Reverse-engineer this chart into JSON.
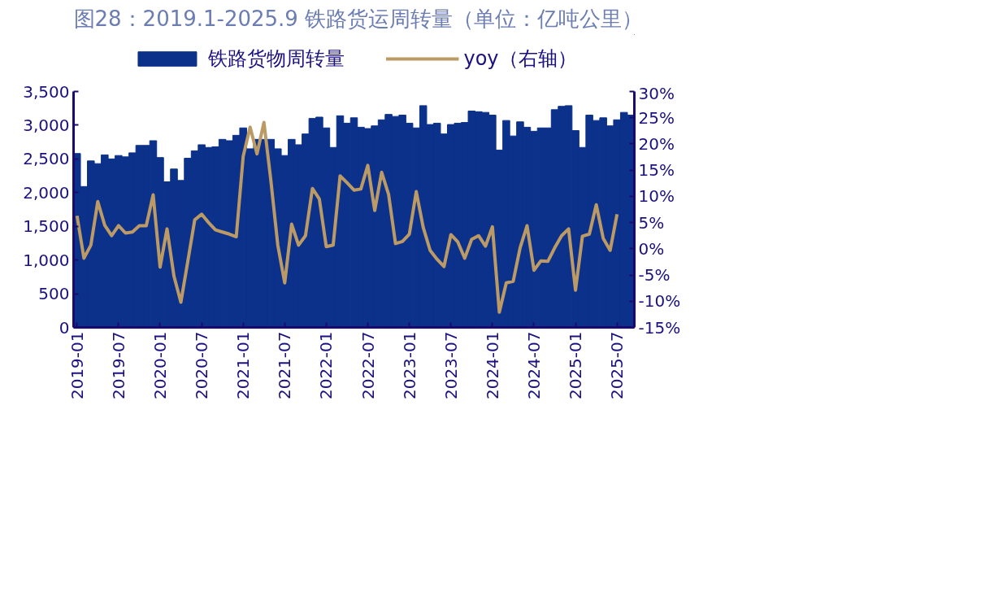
{
  "chart_data": {
    "type": "bar",
    "title": "图28：2019.1-2025.9 铁路货运周转量（单位：亿吨公里）",
    "categories": [
      "2019-01",
      null,
      null,
      null,
      null,
      null,
      "2019-07",
      null,
      null,
      null,
      null,
      null,
      "2020-01",
      null,
      null,
      null,
      null,
      null,
      "2020-07",
      null,
      null,
      null,
      null,
      null,
      "2021-01",
      null,
      null,
      null,
      null,
      null,
      "2021-07",
      null,
      null,
      null,
      null,
      null,
      "2022-01",
      null,
      null,
      null,
      null,
      null,
      "2022-07",
      null,
      null,
      null,
      null,
      null,
      "2023-01",
      null,
      null,
      null,
      null,
      null,
      "2023-07",
      null,
      null,
      null,
      null,
      null,
      "2024-01",
      null,
      null,
      null,
      null,
      null,
      "2024-07",
      null,
      null,
      null,
      null,
      null,
      "2025-01",
      null,
      null,
      null,
      null,
      null,
      "2025-07",
      null,
      null
    ],
    "series": [
      {
        "name": "铁路货物周转量",
        "color": "#0c318a",
        "values": [
          2580,
          2090,
          2470,
          2430,
          2560,
          2500,
          2550,
          2530,
          2590,
          2700,
          2700,
          2770,
          2520,
          2160,
          2350,
          2180,
          2510,
          2620,
          2710,
          2670,
          2680,
          2790,
          2770,
          2850,
          2960,
          2650,
          2790,
          2790,
          2790,
          2650,
          2550,
          2790,
          2710,
          2870,
          3100,
          3120,
          2960,
          2670,
          3140,
          3030,
          3110,
          2970,
          2950,
          2990,
          3080,
          3160,
          3130,
          3150,
          3030,
          2960,
          3290,
          3010,
          3030,
          2870,
          3010,
          3030,
          3040,
          3210,
          3200,
          3190,
          3150,
          2630,
          3070,
          2840,
          3050,
          2970,
          2910,
          2960,
          2960,
          3230,
          3280,
          3290,
          2920,
          2670,
          3150,
          3070,
          3110,
          2990,
          3080,
          3190,
          3150
        ]
      },
      {
        "name": "yoy（右轴）",
        "type": "line",
        "axis": "y2",
        "color": "#bc9a66",
        "values": [
          6.3,
          -1.8,
          0.7,
          9.0,
          4.5,
          2.5,
          4.4,
          3.0,
          3.2,
          4.4,
          4.4,
          10.3,
          -3.5,
          3.8,
          -5.2,
          -10.2,
          -2.4,
          5.5,
          6.6,
          5.0,
          3.6,
          3.2,
          2.8,
          2.3,
          17.6,
          23.2,
          18.1,
          24.1,
          13.0,
          0.7,
          -6.5,
          4.7,
          0.7,
          2.5,
          11.5,
          9.5,
          0.4,
          0.7,
          13.9,
          12.6,
          11.2,
          11.4,
          15.9,
          7.3,
          14.6,
          10.4,
          1.0,
          1.4,
          2.8,
          10.9,
          4.1,
          -0.3,
          -2.0,
          -3.4,
          2.7,
          1.3,
          -1.8,
          1.8,
          2.5,
          0.5,
          4.2,
          -12.1,
          -6.5,
          -6.2,
          0.2,
          4.4,
          -4.1,
          -2.3,
          -2.4,
          0.2,
          2.5,
          3.8,
          -7.9,
          2.4,
          2.8,
          8.4,
          2.0,
          -0.3,
          6.6,
          null,
          null
        ]
      }
    ],
    "ylim": [
      0,
      3500
    ],
    "yticks": [
      0,
      500,
      {
        "value": 1000,
        "label": "1,000"
      },
      {
        "value": 1500,
        "label": "1,500"
      },
      {
        "value": 2000,
        "label": "2,000"
      },
      {
        "value": 2500,
        "label": "2,500"
      },
      {
        "value": 3000,
        "label": "3,000"
      },
      {
        "value": 3500,
        "label": "3,500"
      }
    ],
    "y2lim": [
      -15,
      30
    ],
    "y2ticks": [
      {
        "value": -15,
        "label": "-15%"
      },
      {
        "value": -10,
        "label": "-10%"
      },
      {
        "value": -5,
        "label": "-5%"
      },
      {
        "value": 0,
        "label": "0%"
      },
      {
        "value": 5,
        "label": "5%"
      },
      {
        "value": 10,
        "label": "10%"
      },
      {
        "value": 15,
        "label": "15%"
      },
      {
        "value": 20,
        "label": "20%"
      },
      {
        "value": 25,
        "label": "25%"
      },
      {
        "value": 30,
        "label": "30%"
      }
    ],
    "legend": "top",
    "grid": false,
    "line_style": "solid",
    "marker": "none"
  }
}
